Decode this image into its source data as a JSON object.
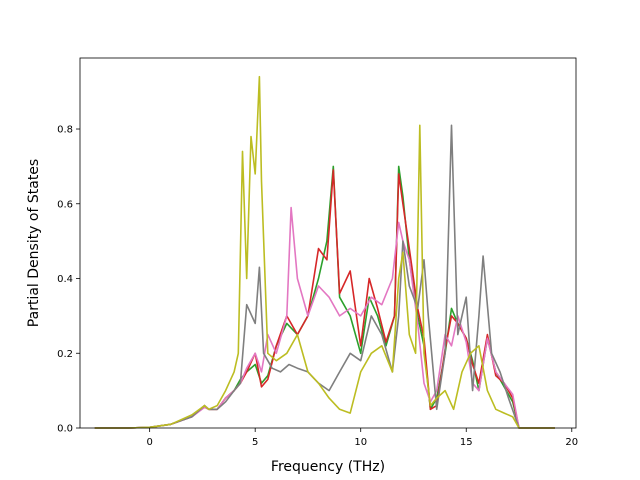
{
  "chart_data": {
    "type": "line",
    "title": "",
    "xlabel": "Frequency (THz)",
    "ylabel": "Partial Density of States",
    "xlim": [
      -3.3,
      20.2
    ],
    "ylim": [
      0,
      0.99
    ],
    "xticks": [
      0,
      5,
      10,
      15,
      20
    ],
    "xtick_labels": [
      "0",
      "5",
      "10",
      "15",
      "20"
    ],
    "yticks": [
      0.0,
      0.2,
      0.4,
      0.6,
      0.8
    ],
    "ytick_labels": [
      "0.0",
      "0.2",
      "0.4",
      "0.6",
      "0.8"
    ],
    "grid": false,
    "legend": "none",
    "series": [
      {
        "color": "#2ca02c",
        "x": [
          -2.6,
          -1,
          0,
          1,
          2,
          2.6,
          2.8,
          3.2,
          3.6,
          4,
          4.3,
          4.6,
          5,
          5.3,
          5.6,
          6,
          6.5,
          7,
          7.5,
          8,
          8.4,
          8.7,
          9,
          9.5,
          10,
          10.4,
          10.8,
          11.2,
          11.6,
          11.8,
          12,
          12.3,
          12.7,
          13,
          13.3,
          13.6,
          14,
          14.3,
          14.6,
          15,
          15.3,
          15.6,
          16,
          16.4,
          16.8,
          17.2,
          17.5,
          19.2
        ],
        "y": [
          0,
          0,
          0.002,
          0.01,
          0.03,
          0.06,
          0.05,
          0.05,
          0.08,
          0.1,
          0.13,
          0.15,
          0.17,
          0.12,
          0.14,
          0.22,
          0.28,
          0.25,
          0.3,
          0.4,
          0.5,
          0.7,
          0.35,
          0.3,
          0.2,
          0.35,
          0.3,
          0.22,
          0.3,
          0.7,
          0.62,
          0.45,
          0.3,
          0.22,
          0.05,
          0.08,
          0.2,
          0.32,
          0.28,
          0.24,
          0.18,
          0.1,
          0.24,
          0.15,
          0.11,
          0.07,
          0,
          0
        ]
      },
      {
        "color": "#d62728",
        "x": [
          -2.6,
          -1,
          0,
          1,
          2,
          2.6,
          2.8,
          3.2,
          3.6,
          4,
          4.3,
          4.6,
          5,
          5.3,
          5.6,
          6,
          6.5,
          7,
          7.5,
          8,
          8.4,
          8.7,
          9,
          9.5,
          10,
          10.4,
          10.8,
          11.2,
          11.6,
          11.8,
          12,
          12.3,
          12.7,
          13,
          13.3,
          13.6,
          14,
          14.3,
          14.6,
          15,
          15.3,
          15.6,
          16,
          16.4,
          16.8,
          17.2,
          17.5,
          19.2
        ],
        "y": [
          0,
          0,
          0.002,
          0.01,
          0.03,
          0.06,
          0.05,
          0.05,
          0.08,
          0.1,
          0.12,
          0.15,
          0.2,
          0.11,
          0.13,
          0.22,
          0.3,
          0.25,
          0.3,
          0.48,
          0.45,
          0.69,
          0.36,
          0.42,
          0.22,
          0.4,
          0.32,
          0.23,
          0.3,
          0.68,
          0.6,
          0.48,
          0.32,
          0.24,
          0.05,
          0.06,
          0.21,
          0.3,
          0.28,
          0.24,
          0.17,
          0.12,
          0.25,
          0.14,
          0.12,
          0.08,
          0,
          0
        ]
      },
      {
        "color": "#e377c2",
        "x": [
          -2.6,
          -1,
          0,
          1,
          2,
          2.6,
          2.8,
          3.2,
          3.6,
          4,
          4.3,
          4.6,
          5,
          5.3,
          5.6,
          6,
          6.5,
          6.7,
          7,
          7.5,
          8,
          8.5,
          9,
          9.5,
          10,
          10.5,
          11,
          11.5,
          11.8,
          12,
          12.3,
          12.7,
          13,
          13.3,
          13.6,
          14,
          14.3,
          14.6,
          15,
          15.3,
          15.6,
          16,
          16.4,
          16.8,
          17.2,
          17.5,
          19.2
        ],
        "y": [
          0,
          0,
          0.002,
          0.01,
          0.03,
          0.055,
          0.05,
          0.05,
          0.08,
          0.1,
          0.12,
          0.16,
          0.2,
          0.15,
          0.25,
          0.2,
          0.3,
          0.59,
          0.4,
          0.3,
          0.38,
          0.35,
          0.3,
          0.32,
          0.3,
          0.35,
          0.33,
          0.4,
          0.55,
          0.5,
          0.45,
          0.28,
          0.12,
          0.07,
          0.1,
          0.25,
          0.22,
          0.3,
          0.23,
          0.12,
          0.1,
          0.24,
          0.15,
          0.12,
          0.09,
          0,
          0
        ]
      },
      {
        "color": "#7f7f7f",
        "x": [
          -2.6,
          -1,
          0,
          1,
          2,
          2.6,
          2.8,
          3.2,
          3.6,
          4,
          4.3,
          4.6,
          5,
          5.2,
          5.4,
          5.8,
          6.2,
          6.6,
          7,
          7.5,
          8,
          8.5,
          9,
          9.5,
          10,
          10.5,
          11,
          11.5,
          11.8,
          12,
          12.3,
          12.7,
          13,
          13.2,
          13.6,
          14,
          14.3,
          14.6,
          15,
          15.3,
          15.6,
          15.8,
          16.2,
          16.6,
          17,
          17.5,
          19.2
        ],
        "y": [
          0,
          0,
          0.002,
          0.01,
          0.03,
          0.06,
          0.05,
          0.05,
          0.07,
          0.1,
          0.12,
          0.33,
          0.28,
          0.43,
          0.2,
          0.16,
          0.15,
          0.17,
          0.16,
          0.15,
          0.12,
          0.1,
          0.15,
          0.2,
          0.18,
          0.3,
          0.25,
          0.15,
          0.3,
          0.5,
          0.38,
          0.32,
          0.45,
          0.3,
          0.05,
          0.2,
          0.81,
          0.25,
          0.35,
          0.1,
          0.3,
          0.46,
          0.2,
          0.15,
          0.08,
          0,
          0
        ]
      },
      {
        "color": "#bcbd22",
        "x": [
          -2.6,
          -1,
          0,
          1,
          2,
          2.6,
          2.8,
          3.2,
          3.6,
          4,
          4.2,
          4.4,
          4.6,
          4.8,
          5,
          5.2,
          5.3,
          5.6,
          6,
          6.5,
          7,
          7.5,
          8,
          8.5,
          9,
          9.5,
          10,
          10.5,
          11,
          11.5,
          11.8,
          12,
          12.3,
          12.6,
          12.8,
          13,
          13.3,
          13.6,
          14,
          14.4,
          14.8,
          15.2,
          15.6,
          16,
          16.4,
          16.8,
          17.2,
          17.5,
          19.2
        ],
        "y": [
          0,
          0,
          0.002,
          0.01,
          0.035,
          0.06,
          0.05,
          0.06,
          0.1,
          0.15,
          0.2,
          0.74,
          0.4,
          0.78,
          0.68,
          0.94,
          0.66,
          0.2,
          0.18,
          0.2,
          0.25,
          0.15,
          0.12,
          0.08,
          0.05,
          0.04,
          0.15,
          0.2,
          0.22,
          0.15,
          0.4,
          0.47,
          0.25,
          0.2,
          0.81,
          0.2,
          0.06,
          0.08,
          0.1,
          0.05,
          0.15,
          0.2,
          0.22,
          0.1,
          0.05,
          0.04,
          0.03,
          0,
          0
        ]
      }
    ]
  }
}
